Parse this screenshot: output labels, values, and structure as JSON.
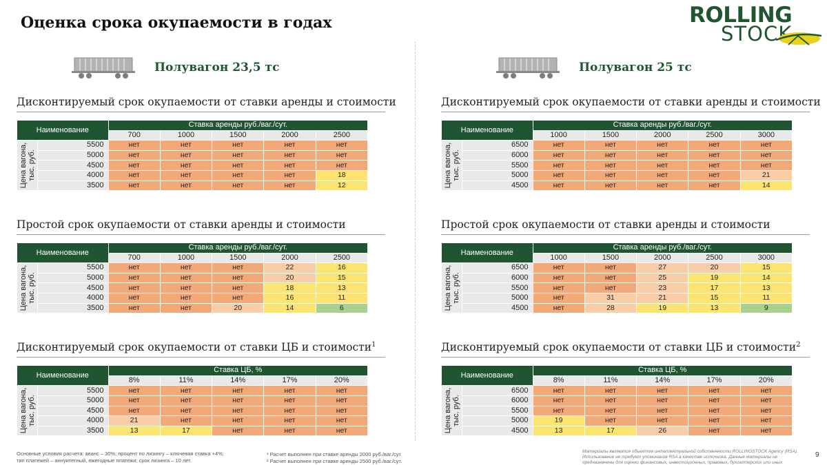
{
  "page": {
    "title": "Оценка срока окупаемости в годах",
    "number": "9"
  },
  "logo": {
    "line1": "ROLLING",
    "line2": "STOCK",
    "brand_color": "#1f5631",
    "accent_color": "#e8d21b"
  },
  "colors": {
    "header_green": "#1f5631",
    "no_payback": "#f3a877",
    "long": "#f8cda8",
    "medium": "#fde36f",
    "short": "#a9d18e"
  },
  "left": {
    "wagon_title": "Полувагон 23,5 тс",
    "sections": [
      {
        "title": "Дисконтируемый срок окупаемости от ставки аренды и стоимости",
        "sup": "",
        "name_header": "Наименование",
        "group_header": "Ставка аренды руб./ваг./сут.",
        "row_label": "Цена вагона, тыс. руб.",
        "columns": [
          "700",
          "1000",
          "1500",
          "2000",
          "2500"
        ],
        "rows": [
          {
            "price": "5500",
            "cells": [
              {
                "v": "нет",
                "c": "orange"
              },
              {
                "v": "нет",
                "c": "orange"
              },
              {
                "v": "нет",
                "c": "orange"
              },
              {
                "v": "нет",
                "c": "orange"
              },
              {
                "v": "нет",
                "c": "orange"
              }
            ]
          },
          {
            "price": "5000",
            "cells": [
              {
                "v": "нет",
                "c": "orange"
              },
              {
                "v": "нет",
                "c": "orange"
              },
              {
                "v": "нет",
                "c": "orange"
              },
              {
                "v": "нет",
                "c": "orange"
              },
              {
                "v": "нет",
                "c": "orange"
              }
            ]
          },
          {
            "price": "4500",
            "cells": [
              {
                "v": "нет",
                "c": "orange"
              },
              {
                "v": "нет",
                "c": "orange"
              },
              {
                "v": "нет",
                "c": "orange"
              },
              {
                "v": "нет",
                "c": "orange"
              },
              {
                "v": "нет",
                "c": "orange"
              }
            ]
          },
          {
            "price": "4000",
            "cells": [
              {
                "v": "нет",
                "c": "orange"
              },
              {
                "v": "нет",
                "c": "orange"
              },
              {
                "v": "нет",
                "c": "orange"
              },
              {
                "v": "нет",
                "c": "orange"
              },
              {
                "v": "18",
                "c": "yellow"
              }
            ]
          },
          {
            "price": "3500",
            "cells": [
              {
                "v": "нет",
                "c": "orange"
              },
              {
                "v": "нет",
                "c": "orange"
              },
              {
                "v": "нет",
                "c": "orange"
              },
              {
                "v": "нет",
                "c": "orange"
              },
              {
                "v": "12",
                "c": "yellow"
              }
            ]
          }
        ]
      },
      {
        "title": "Простой срок окупаемости от ставки аренды и стоимости",
        "sup": "",
        "name_header": "Наименование",
        "group_header": "Ставка аренды руб./ваг./сут.",
        "row_label": "Цена вагона, тыс. руб.",
        "columns": [
          "700",
          "1000",
          "1500",
          "2000",
          "2500"
        ],
        "rows": [
          {
            "price": "5500",
            "cells": [
              {
                "v": "нет",
                "c": "orange"
              },
              {
                "v": "нет",
                "c": "orange"
              },
              {
                "v": "нет",
                "c": "orange"
              },
              {
                "v": "22",
                "c": "peach"
              },
              {
                "v": "16",
                "c": "yellow"
              }
            ]
          },
          {
            "price": "5000",
            "cells": [
              {
                "v": "нет",
                "c": "orange"
              },
              {
                "v": "нет",
                "c": "orange"
              },
              {
                "v": "нет",
                "c": "orange"
              },
              {
                "v": "20",
                "c": "peach"
              },
              {
                "v": "15",
                "c": "yellow"
              }
            ]
          },
          {
            "price": "4500",
            "cells": [
              {
                "v": "нет",
                "c": "orange"
              },
              {
                "v": "нет",
                "c": "orange"
              },
              {
                "v": "нет",
                "c": "orange"
              },
              {
                "v": "18",
                "c": "yellow"
              },
              {
                "v": "13",
                "c": "yellow"
              }
            ]
          },
          {
            "price": "4000",
            "cells": [
              {
                "v": "нет",
                "c": "orange"
              },
              {
                "v": "нет",
                "c": "orange"
              },
              {
                "v": "нет",
                "c": "orange"
              },
              {
                "v": "16",
                "c": "yellow"
              },
              {
                "v": "11",
                "c": "yellow"
              }
            ]
          },
          {
            "price": "3500",
            "cells": [
              {
                "v": "нет",
                "c": "orange"
              },
              {
                "v": "нет",
                "c": "orange"
              },
              {
                "v": "20",
                "c": "peach"
              },
              {
                "v": "14",
                "c": "yellow"
              },
              {
                "v": "6",
                "c": "green"
              }
            ]
          }
        ]
      },
      {
        "title": "Дисконтируемый срок окупаемости от ставки ЦБ и стоимости",
        "sup": "1",
        "name_header": "Наименование",
        "group_header": "Ставка ЦБ, %",
        "row_label": "Цена вагона, тыс. руб.",
        "columns": [
          "8%",
          "11%",
          "14%",
          "17%",
          "20%"
        ],
        "rows": [
          {
            "price": "5500",
            "cells": [
              {
                "v": "нет",
                "c": "orange"
              },
              {
                "v": "нет",
                "c": "orange"
              },
              {
                "v": "нет",
                "c": "orange"
              },
              {
                "v": "нет",
                "c": "orange"
              },
              {
                "v": "нет",
                "c": "orange"
              }
            ]
          },
          {
            "price": "5000",
            "cells": [
              {
                "v": "нет",
                "c": "orange"
              },
              {
                "v": "нет",
                "c": "orange"
              },
              {
                "v": "нет",
                "c": "orange"
              },
              {
                "v": "нет",
                "c": "orange"
              },
              {
                "v": "нет",
                "c": "orange"
              }
            ]
          },
          {
            "price": "4500",
            "cells": [
              {
                "v": "нет",
                "c": "orange"
              },
              {
                "v": "нет",
                "c": "orange"
              },
              {
                "v": "нет",
                "c": "orange"
              },
              {
                "v": "нет",
                "c": "orange"
              },
              {
                "v": "нет",
                "c": "orange"
              }
            ]
          },
          {
            "price": "4000",
            "cells": [
              {
                "v": "21",
                "c": "peach"
              },
              {
                "v": "нет",
                "c": "orange"
              },
              {
                "v": "нет",
                "c": "orange"
              },
              {
                "v": "нет",
                "c": "orange"
              },
              {
                "v": "нет",
                "c": "orange"
              }
            ]
          },
          {
            "price": "3500",
            "cells": [
              {
                "v": "13",
                "c": "yellow"
              },
              {
                "v": "17",
                "c": "yellow"
              },
              {
                "v": "нет",
                "c": "orange"
              },
              {
                "v": "нет",
                "c": "orange"
              },
              {
                "v": "нет",
                "c": "orange"
              }
            ]
          }
        ]
      }
    ]
  },
  "right": {
    "wagon_title": "Полувагон 25 тс",
    "sections": [
      {
        "title": "Дисконтируемый срок окупаемости от ставки аренды и стоимости",
        "sup": "",
        "name_header": "Наименование",
        "group_header": "Ставка аренды руб./ваг./сут.",
        "row_label": "Цена вагона, тыс. руб.",
        "columns": [
          "1000",
          "1500",
          "2000",
          "2500",
          "3000"
        ],
        "rows": [
          {
            "price": "6500",
            "cells": [
              {
                "v": "нет",
                "c": "orange"
              },
              {
                "v": "нет",
                "c": "orange"
              },
              {
                "v": "нет",
                "c": "orange"
              },
              {
                "v": "нет",
                "c": "orange"
              },
              {
                "v": "нет",
                "c": "orange"
              }
            ]
          },
          {
            "price": "6000",
            "cells": [
              {
                "v": "нет",
                "c": "orange"
              },
              {
                "v": "нет",
                "c": "orange"
              },
              {
                "v": "нет",
                "c": "orange"
              },
              {
                "v": "нет",
                "c": "orange"
              },
              {
                "v": "нет",
                "c": "orange"
              }
            ]
          },
          {
            "price": "5500",
            "cells": [
              {
                "v": "нет",
                "c": "orange"
              },
              {
                "v": "нет",
                "c": "orange"
              },
              {
                "v": "нет",
                "c": "orange"
              },
              {
                "v": "нет",
                "c": "orange"
              },
              {
                "v": "нет",
                "c": "orange"
              }
            ]
          },
          {
            "price": "5000",
            "cells": [
              {
                "v": "нет",
                "c": "orange"
              },
              {
                "v": "нет",
                "c": "orange"
              },
              {
                "v": "нет",
                "c": "orange"
              },
              {
                "v": "нет",
                "c": "orange"
              },
              {
                "v": "21",
                "c": "peach"
              }
            ]
          },
          {
            "price": "4500",
            "cells": [
              {
                "v": "нет",
                "c": "orange"
              },
              {
                "v": "нет",
                "c": "orange"
              },
              {
                "v": "нет",
                "c": "orange"
              },
              {
                "v": "нет",
                "c": "orange"
              },
              {
                "v": "14",
                "c": "yellow"
              }
            ]
          }
        ]
      },
      {
        "title": "Простой срок окупаемости от ставки аренды и стоимости",
        "sup": "",
        "name_header": "Наименование",
        "group_header": "Ставка аренды руб./ваг./сут.",
        "row_label": "Цена вагона, тыс. руб.",
        "columns": [
          "1000",
          "1500",
          "2000",
          "2500",
          "3000"
        ],
        "rows": [
          {
            "price": "6500",
            "cells": [
              {
                "v": "нет",
                "c": "orange"
              },
              {
                "v": "нет",
                "c": "orange"
              },
              {
                "v": "27",
                "c": "peach"
              },
              {
                "v": "20",
                "c": "peach"
              },
              {
                "v": "15",
                "c": "yellow"
              }
            ]
          },
          {
            "price": "6000",
            "cells": [
              {
                "v": "нет",
                "c": "orange"
              },
              {
                "v": "нет",
                "c": "orange"
              },
              {
                "v": "25",
                "c": "peach"
              },
              {
                "v": "19",
                "c": "yellow"
              },
              {
                "v": "14",
                "c": "yellow"
              }
            ]
          },
          {
            "price": "5500",
            "cells": [
              {
                "v": "нет",
                "c": "orange"
              },
              {
                "v": "нет",
                "c": "orange"
              },
              {
                "v": "23",
                "c": "peach"
              },
              {
                "v": "17",
                "c": "yellow"
              },
              {
                "v": "13",
                "c": "yellow"
              }
            ]
          },
          {
            "price": "5000",
            "cells": [
              {
                "v": "нет",
                "c": "orange"
              },
              {
                "v": "31",
                "c": "peach"
              },
              {
                "v": "21",
                "c": "peach"
              },
              {
                "v": "15",
                "c": "yellow"
              },
              {
                "v": "11",
                "c": "yellow"
              }
            ]
          },
          {
            "price": "4500",
            "cells": [
              {
                "v": "нет",
                "c": "orange"
              },
              {
                "v": "28",
                "c": "peach"
              },
              {
                "v": "19",
                "c": "yellow"
              },
              {
                "v": "13",
                "c": "yellow"
              },
              {
                "v": "9",
                "c": "green"
              }
            ]
          }
        ]
      },
      {
        "title": "Дисконтируемый срок окупаемости от ставки ЦБ и стоимости",
        "sup": "2",
        "name_header": "Наименование",
        "group_header": "Ставка ЦБ, %",
        "row_label": "Цена вагона, тыс. руб.",
        "columns": [
          "8%",
          "11%",
          "14%",
          "17%",
          "20%"
        ],
        "rows": [
          {
            "price": "6500",
            "cells": [
              {
                "v": "нет",
                "c": "orange"
              },
              {
                "v": "нет",
                "c": "orange"
              },
              {
                "v": "нет",
                "c": "orange"
              },
              {
                "v": "нет",
                "c": "orange"
              },
              {
                "v": "нет",
                "c": "orange"
              }
            ]
          },
          {
            "price": "6000",
            "cells": [
              {
                "v": "нет",
                "c": "orange"
              },
              {
                "v": "нет",
                "c": "orange"
              },
              {
                "v": "нет",
                "c": "orange"
              },
              {
                "v": "нет",
                "c": "orange"
              },
              {
                "v": "нет",
                "c": "orange"
              }
            ]
          },
          {
            "price": "5500",
            "cells": [
              {
                "v": "нет",
                "c": "orange"
              },
              {
                "v": "нет",
                "c": "orange"
              },
              {
                "v": "нет",
                "c": "orange"
              },
              {
                "v": "нет",
                "c": "orange"
              },
              {
                "v": "нет",
                "c": "orange"
              }
            ]
          },
          {
            "price": "5000",
            "cells": [
              {
                "v": "19",
                "c": "yellow"
              },
              {
                "v": "нет",
                "c": "orange"
              },
              {
                "v": "нет",
                "c": "orange"
              },
              {
                "v": "нет",
                "c": "orange"
              },
              {
                "v": "нет",
                "c": "orange"
              }
            ]
          },
          {
            "price": "4500",
            "cells": [
              {
                "v": "13",
                "c": "yellow"
              },
              {
                "v": "17",
                "c": "yellow"
              },
              {
                "v": "26",
                "c": "peach"
              },
              {
                "v": "нет",
                "c": "orange"
              },
              {
                "v": "нет",
                "c": "orange"
              }
            ]
          }
        ]
      }
    ]
  },
  "footer": {
    "assumptions_line1": "Основные условия расчета: аванс – 30%; процент по лизингу – ключевая ставка +4%;",
    "assumptions_line2": "тип платежей – аннуитетный, ежегодные платежи; срок лизинга – 10 лет.",
    "footnote1": "¹ Расчет выполнен при ставке аренды 2000 руб./ваг./сут.",
    "footnote2": "² Расчет выполнен при ставке аренды 2500 руб./ваг./сут.",
    "disclaimer": "Материалы являются объектом интеллектуальной собственности ROLLINGSTOCK Agency (RSA). Использование не требует упоминания RSA в качестве источника. Данные материалы не предназначены для оценки финансовых, инвестиционных, правовых, бухгалтерских или иных профессиональных консультаций"
  }
}
